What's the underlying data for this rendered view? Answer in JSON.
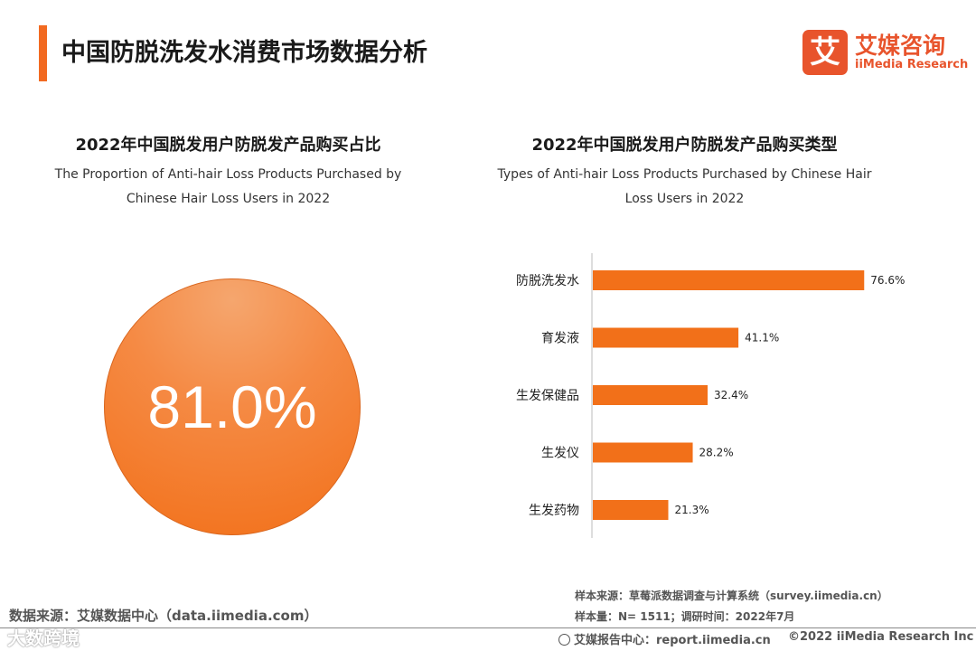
{
  "header": {
    "title": "中国防脱洗发水消费市场数据分析",
    "logo_mark": "艾",
    "logo_cn": "艾媒咨询",
    "logo_en": "iiMedia Research"
  },
  "left_chart": {
    "title_cn": "2022年中国脱发用户防脱发产品购买占比",
    "title_en_1": "The Proportion of Anti-hair Loss Products Purchased by",
    "title_en_2": "Chinese Hair Loss Users in 2022",
    "value_label": "81.0%"
  },
  "right_chart": {
    "title_cn": "2022年中国脱发用户防脱发产品购买类型",
    "title_en_1": "Types of Anti-hair Loss Products Purchased by Chinese Hair",
    "title_en_2": "Loss Users in 2022"
  },
  "chart_data": [
    {
      "type": "pie",
      "values": [
        81.0
      ],
      "labels": [
        "81.0%"
      ],
      "title": "2022年中国脱发用户防脱发产品购买占比",
      "colors": [
        "#f27019"
      ]
    },
    {
      "type": "bar",
      "orientation": "horizontal",
      "categories": [
        "防脱洗发水",
        "育发液",
        "生发保健品",
        "生发仪",
        "生发药物"
      ],
      "values": [
        76.6,
        41.1,
        32.4,
        28.2,
        21.3
      ],
      "value_labels": [
        "76.6%",
        "41.1%",
        "32.4%",
        "28.2%",
        "21.3%"
      ],
      "title": "2022年中国脱发用户防脱发产品购买类型",
      "xlim": [
        0,
        100
      ],
      "grid": false,
      "color": "#f27019"
    }
  ],
  "footer": {
    "data_source": "数据来源：艾媒数据中心（data.iimedia.com）",
    "sample_source": "样本来源：草莓派数据调查与计算系统（survey.iimedia.cn）",
    "sample_size": "样本量：N= 1511；调研时间：2022年7月",
    "report_site": "艾媒报告中心：report.iimedia.cn",
    "copyright": "©2022  iiMedia Research  Inc",
    "watermark": "大数跨境"
  }
}
